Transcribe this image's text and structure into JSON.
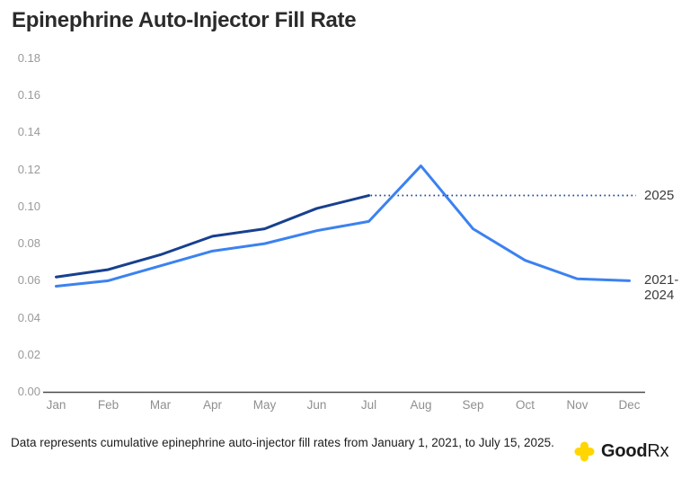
{
  "page": {
    "title": "Epinephrine Auto-Injector Fill Rate",
    "footnote": "Data represents cumulative epinephrine auto-injector fill rates from January 1, 2021, to July 15, 2025.",
    "brand": {
      "name_bold": "Good",
      "name_regular": "Rx",
      "icon": "plus-cross-icon",
      "icon_color": "#FFD600",
      "text_color": "#1b1b1b"
    }
  },
  "chart_data": {
    "type": "line",
    "title": "Epinephrine Auto-Injector Fill Rate",
    "categories": [
      "Jan",
      "Feb",
      "Mar",
      "Apr",
      "May",
      "Jun",
      "Jul",
      "Aug",
      "Sep",
      "Oct",
      "Nov",
      "Dec"
    ],
    "ytick_labels": [
      "0.00",
      "0.02",
      "0.04",
      "0.06",
      "0.08",
      "0.10",
      "0.12",
      "0.14",
      "0.16",
      "0.18"
    ],
    "ylim": [
      0,
      0.18
    ],
    "xlabel": "",
    "ylabel": "",
    "grid": false,
    "legend_position": "right-end-labels",
    "axis_color": "#4a4a4a",
    "tick_color": "#9a9a9a",
    "series": [
      {
        "name": "2025",
        "label": "2025",
        "color": "#17408f",
        "values": [
          0.062,
          0.066,
          0.074,
          0.084,
          0.088,
          0.099,
          0.106
        ],
        "dotted_extension": true,
        "dotted_note": "flat dotted projection of last 2025 value extended to December"
      },
      {
        "name": "2021-2024",
        "label": "2021-2024",
        "color": "#3b82f0",
        "values": [
          0.057,
          0.06,
          0.068,
          0.076,
          0.08,
          0.087,
          0.092,
          0.122,
          0.088,
          0.071,
          0.061,
          0.06
        ],
        "dotted_extension": false
      }
    ]
  }
}
